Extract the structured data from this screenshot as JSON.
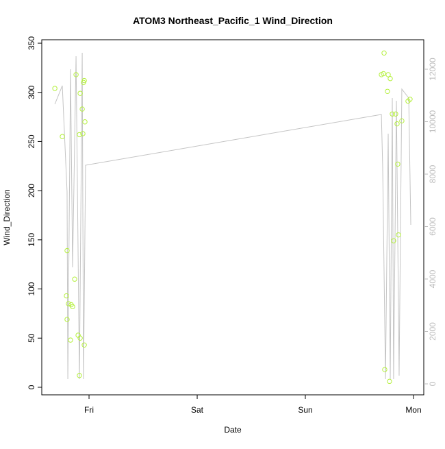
{
  "chart_data": {
    "type": "scatter",
    "title": "ATOM3 Northeast_Pacific_1 Wind_Direction",
    "x_label": "Date",
    "y_label": "Wind_Direction",
    "xlim": [
      -0.437,
      3.095
    ],
    "xticks": [
      {
        "value": 0,
        "label": "Fri"
      },
      {
        "value": 1,
        "label": "Sat"
      },
      {
        "value": 2,
        "label": "Sun"
      },
      {
        "value": 3,
        "label": "Mon"
      }
    ],
    "ylim": [
      -7.7,
      353.5
    ],
    "yticks": [
      0,
      50,
      100,
      150,
      200,
      250,
      300,
      350
    ],
    "y2lim": [
      -418,
      13124
    ],
    "y2ticks": [
      0,
      2000,
      4000,
      6000,
      8000,
      10000,
      12000
    ],
    "series": [
      {
        "type": "scatter",
        "color": "#b4f03c",
        "x": [
          -0.316,
          -0.247,
          -0.203,
          -0.209,
          -0.203,
          -0.19,
          -0.171,
          -0.165,
          -0.152,
          -0.133,
          -0.12,
          -0.101,
          -0.089,
          -0.089,
          -0.082,
          -0.082,
          -0.063,
          -0.057,
          -0.051,
          -0.044,
          -0.044,
          -0.038,
          2.703,
          2.728,
          2.722,
          2.734,
          2.759,
          2.766,
          2.778,
          2.785,
          2.804,
          2.816,
          2.835,
          2.848,
          2.854,
          2.861,
          2.892,
          2.949,
          2.968
        ],
        "values": [
          304,
          255,
          139,
          93,
          69,
          85,
          48,
          84,
          82,
          110,
          318,
          53,
          257,
          12,
          50,
          299,
          283,
          258,
          310,
          312,
          43,
          270,
          318,
          340,
          319,
          18,
          301,
          318,
          6,
          314,
          278,
          149,
          278,
          268,
          227,
          155,
          271,
          291,
          293
        ]
      },
      {
        "type": "line",
        "axis": "y2",
        "color": "#c4c4c4",
        "x": [
          -0.316,
          -0.247,
          -0.203,
          -0.196,
          -0.171,
          -0.152,
          -0.12,
          -0.089,
          -0.063,
          -0.051,
          -0.032,
          2.703,
          2.715,
          2.741,
          2.766,
          2.785,
          2.804,
          2.816,
          2.842,
          2.867,
          2.892,
          2.956,
          2.975
        ],
        "values": [
          10667,
          11373,
          7320,
          183,
          12000,
          4444,
          12497,
          183,
          12627,
          183,
          8340,
          10275,
          8288,
          183,
          9542,
          183,
          10902,
          183,
          10797,
          314,
          11242,
          10902,
          6065
        ]
      }
    ]
  }
}
